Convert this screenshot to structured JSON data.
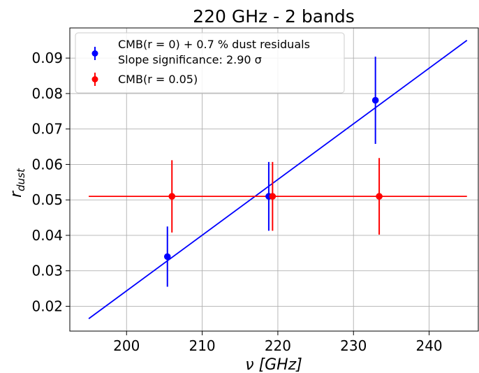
{
  "chart_data": {
    "type": "scatter",
    "title": "220 GHz - 2 bands",
    "xlabel": "ν [GHz]",
    "ylabel_main": "r",
    "ylabel_sub": "dust",
    "xlim": [
      192.5,
      246.5
    ],
    "ylim": [
      0.013,
      0.0985
    ],
    "xticks": [
      200,
      210,
      220,
      230,
      240
    ],
    "yticks": [
      0.02,
      0.03,
      0.04,
      0.05,
      0.06,
      0.07,
      0.08,
      0.09
    ],
    "xtick_labels": [
      "200",
      "210",
      "220",
      "230",
      "240"
    ],
    "ytick_labels": [
      "0.02",
      "0.03",
      "0.04",
      "0.05",
      "0.06",
      "0.07",
      "0.08",
      "0.09"
    ],
    "grid": true,
    "legend_position": "top-left",
    "series": [
      {
        "name": "CMB(r = 0) + 0.7 % dust residuals",
        "name2": "Slope significance: 2.90 σ",
        "color": "#0000ff",
        "x": [
          205.4,
          218.8,
          232.9
        ],
        "y": [
          0.034,
          0.051,
          0.0781
        ],
        "err": [
          0.0085,
          0.0097,
          0.0123
        ]
      },
      {
        "name": "CMB(r = 0.05)",
        "color": "#ff0000",
        "x": [
          206.0,
          219.3,
          233.4
        ],
        "y": [
          0.051,
          0.051,
          0.051
        ],
        "err": [
          0.0102,
          0.0097,
          0.0108
        ]
      }
    ],
    "lines": [
      {
        "color": "#0000ff",
        "x": [
          195,
          245
        ],
        "y": [
          0.0165,
          0.095
        ]
      },
      {
        "color": "#ff0000",
        "x": [
          195,
          245
        ],
        "y": [
          0.051,
          0.051
        ]
      }
    ]
  }
}
